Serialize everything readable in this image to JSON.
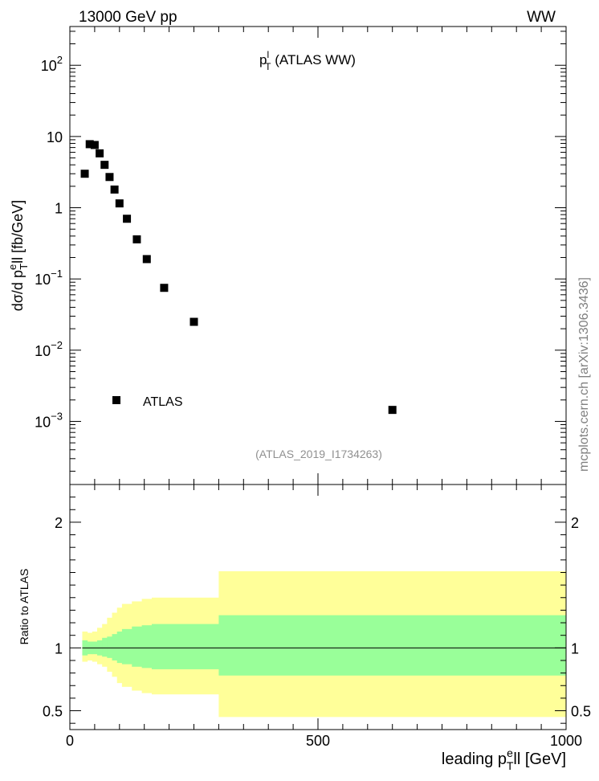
{
  "header": {
    "energy_label": "13000 GeV pp",
    "process_label": "WW"
  },
  "side_label": "mcplots.cern.ch [arXiv:1306.3436]",
  "chart_data": [
    {
      "type": "scatter",
      "panel": "main",
      "title_main": "p",
      "title_sup": "l",
      "title_sub": "T",
      "title_rest": " (ATLAS WW)",
      "analysis_label": "(ATLAS_2019_I1734263)",
      "ylabel_pre": "dσ/d p",
      "ylabel_sup": "e",
      "ylabel_sub": "T",
      "ylabel_post": "ll [fb/GeV]",
      "y_scale": "log",
      "ylim": [
        0.00013,
        350
      ],
      "xlim": [
        0,
        1000
      ],
      "y_ticks": [
        {
          "base": "10",
          "exp": "2",
          "value": 100
        },
        {
          "base": "10",
          "exp": "",
          "value": 10
        },
        {
          "base": "1",
          "exp": "",
          "value": 1
        },
        {
          "base": "10",
          "exp": "−1",
          "value": 0.1
        },
        {
          "base": "10",
          "exp": "−2",
          "value": 0.01
        },
        {
          "base": "10",
          "exp": "−3",
          "value": 0.001
        }
      ],
      "legend": {
        "entry": "ATLAS",
        "placement": "bottom-left"
      },
      "series": [
        {
          "name": "ATLAS",
          "x": [
            30,
            40,
            50,
            60,
            70,
            80,
            90,
            100,
            115,
            135,
            155,
            190,
            250,
            650
          ],
          "y": [
            3.0,
            7.8,
            7.6,
            5.8,
            4.0,
            2.7,
            1.8,
            1.15,
            0.7,
            0.36,
            0.19,
            0.075,
            0.025,
            0.00145
          ]
        }
      ]
    },
    {
      "type": "area",
      "panel": "ratio",
      "ylabel": "Ratio to ATLAS",
      "xlabel_pre": "leading p",
      "xlabel_sup": "e",
      "xlabel_sub": "T",
      "xlabel_post": "ll [GeV]",
      "xlim": [
        0,
        1000
      ],
      "ylim": [
        0.35,
        2.3
      ],
      "x_ticks": [
        {
          "label": "0",
          "value": 0
        },
        {
          "label": "500",
          "value": 500
        },
        {
          "label": "1000",
          "value": 1000
        }
      ],
      "y_ticks": [
        {
          "label": "2",
          "value": 2
        },
        {
          "label": "1",
          "value": 1
        },
        {
          "label": "0.5",
          "value": 0.5
        }
      ],
      "reference_line": 1,
      "bands": {
        "edges": [
          25,
          35,
          45,
          55,
          65,
          75,
          85,
          95,
          105,
          125,
          145,
          165,
          300,
          1000
        ],
        "green_lo": [
          0.94,
          0.95,
          0.95,
          0.94,
          0.93,
          0.92,
          0.9,
          0.88,
          0.87,
          0.85,
          0.84,
          0.83,
          0.78
        ],
        "green_hi": [
          1.06,
          1.05,
          1.05,
          1.06,
          1.08,
          1.09,
          1.11,
          1.13,
          1.15,
          1.17,
          1.18,
          1.19,
          1.26
        ],
        "yellow_lo": [
          0.89,
          0.9,
          0.89,
          0.87,
          0.85,
          0.81,
          0.77,
          0.72,
          0.69,
          0.66,
          0.64,
          0.63,
          0.45
        ],
        "yellow_hi": [
          1.13,
          1.12,
          1.13,
          1.16,
          1.19,
          1.24,
          1.28,
          1.32,
          1.35,
          1.37,
          1.39,
          1.4,
          1.61
        ],
        "green_color": "#99ff99",
        "yellow_color": "#ffff99"
      }
    }
  ]
}
